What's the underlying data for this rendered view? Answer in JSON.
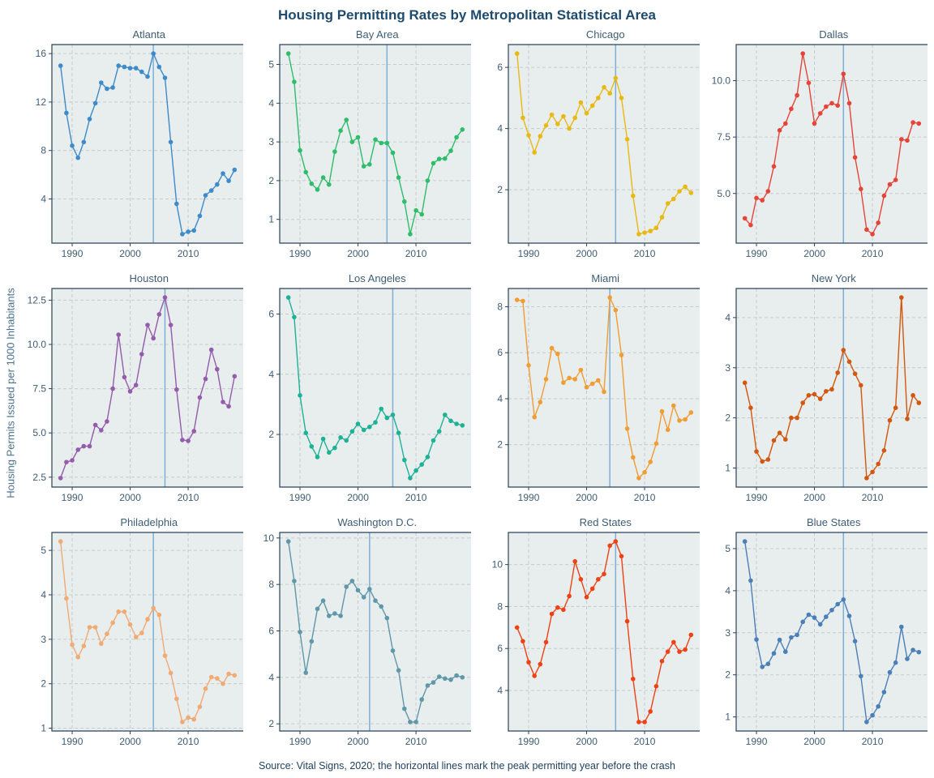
{
  "title": "Housing Permitting Rates by Metropolitan Statistical Area",
  "ylabel": "Housing Permits Issued per 1000 Inhabitants",
  "caption": "Source: Vital Signs, 2020; the horizontal lines mark the peak permitting year before the crash",
  "style": {
    "panel_bg": "#e8edee",
    "grid_color": "#c6cbce",
    "border_color": "#2a4258",
    "tick_label_color": "#3e5c74",
    "ref_line_color": "#7eb0d5",
    "title_color": "#1e4a6d"
  },
  "chart_data": {
    "type": "line",
    "x_start": 1988,
    "x_end": 2018,
    "xticks": [
      1990,
      2000,
      2010
    ],
    "x_domain": [
      1986.5,
      2019.5
    ],
    "note": "vertical reference line per panel marks peak permitting year before the crash",
    "panels": [
      {
        "name": "Atlanta",
        "slug": "atlanta",
        "color": "#3d8bc9",
        "peak_year": 2004,
        "yticks": [
          4,
          8,
          12,
          16
        ],
        "values": [
          15.0,
          11.1,
          8.4,
          7.4,
          8.7,
          10.6,
          11.9,
          13.6,
          13.1,
          13.2,
          15.0,
          14.9,
          14.8,
          14.8,
          14.5,
          14.1,
          16.0,
          14.9,
          14.0,
          8.7,
          3.6,
          1.1,
          1.3,
          1.4,
          2.6,
          4.3,
          4.7,
          5.2,
          6.1,
          5.5,
          6.4
        ]
      },
      {
        "name": "Bay Area",
        "slug": "bay-area",
        "color": "#2ebd6b",
        "peak_year": 2005,
        "yticks": [
          1,
          2,
          3,
          4,
          5
        ],
        "values": [
          5.28,
          4.55,
          2.78,
          2.22,
          1.92,
          1.77,
          2.08,
          1.9,
          2.75,
          3.29,
          3.57,
          3.0,
          3.12,
          2.37,
          2.42,
          3.06,
          2.97,
          2.97,
          2.72,
          2.08,
          1.46,
          0.62,
          1.23,
          1.13,
          2.0,
          2.45,
          2.56,
          2.57,
          2.77,
          3.12,
          3.32
        ]
      },
      {
        "name": "Chicago",
        "slug": "chicago",
        "color": "#e8b912",
        "peak_year": 2005,
        "yticks": [
          2,
          4,
          6
        ],
        "values": [
          6.45,
          4.35,
          3.78,
          3.22,
          3.75,
          4.1,
          4.45,
          4.15,
          4.4,
          4.0,
          4.35,
          4.85,
          4.5,
          4.75,
          5.0,
          5.35,
          5.15,
          5.65,
          5.0,
          3.65,
          1.8,
          0.55,
          0.6,
          0.65,
          0.75,
          1.1,
          1.55,
          1.7,
          1.95,
          2.1,
          1.9
        ]
      },
      {
        "name": "Dallas",
        "slug": "dallas",
        "color": "#e64438",
        "peak_year": 2005,
        "yticks": [
          5.0,
          7.5,
          10.0
        ],
        "values": [
          3.9,
          3.6,
          4.8,
          4.7,
          5.1,
          6.2,
          7.8,
          8.1,
          8.75,
          9.35,
          11.2,
          9.9,
          8.1,
          8.55,
          8.85,
          9.0,
          8.9,
          10.3,
          9.0,
          6.6,
          5.2,
          3.4,
          3.2,
          3.7,
          4.9,
          5.4,
          5.6,
          7.4,
          7.35,
          8.15,
          8.1
        ]
      },
      {
        "name": "Houston",
        "slug": "houston",
        "color": "#945cab",
        "peak_year": 2006,
        "yticks": [
          2.5,
          5.0,
          7.5,
          10.0,
          12.5
        ],
        "values": [
          2.45,
          3.35,
          3.45,
          4.05,
          4.25,
          4.25,
          5.45,
          5.15,
          5.65,
          7.5,
          10.55,
          8.15,
          7.35,
          7.7,
          9.45,
          11.1,
          10.35,
          11.7,
          12.65,
          11.1,
          7.45,
          4.6,
          4.55,
          5.1,
          7.0,
          8.05,
          9.7,
          8.6,
          6.75,
          6.5,
          8.2
        ]
      },
      {
        "name": "Los Angeles",
        "slug": "los-angeles",
        "color": "#1db296",
        "peak_year": 2006,
        "yticks": [
          2,
          4,
          6
        ],
        "values": [
          6.55,
          5.9,
          3.3,
          2.05,
          1.6,
          1.25,
          1.85,
          1.4,
          1.55,
          1.9,
          1.8,
          2.1,
          2.35,
          2.15,
          2.25,
          2.4,
          2.85,
          2.55,
          2.65,
          2.05,
          1.15,
          0.55,
          0.8,
          1.0,
          1.25,
          1.8,
          2.1,
          2.65,
          2.45,
          2.35,
          2.3
        ]
      },
      {
        "name": "Miami",
        "slug": "miami",
        "color": "#f09d33",
        "peak_year": 2004,
        "yticks": [
          2,
          4,
          6,
          8
        ],
        "values": [
          8.3,
          8.25,
          5.45,
          3.2,
          3.85,
          4.85,
          6.2,
          5.95,
          4.7,
          4.9,
          4.85,
          5.25,
          4.5,
          4.65,
          4.8,
          4.3,
          8.4,
          7.85,
          5.9,
          2.7,
          1.45,
          0.55,
          0.8,
          1.25,
          2.05,
          3.45,
          2.65,
          3.7,
          3.05,
          3.1,
          3.4
        ]
      },
      {
        "name": "New York",
        "slug": "new-york",
        "color": "#d2570f",
        "peak_year": 2005,
        "yticks": [
          1,
          2,
          3,
          4
        ],
        "values": [
          2.7,
          2.2,
          1.33,
          1.13,
          1.17,
          1.55,
          1.7,
          1.57,
          2.0,
          2.0,
          2.3,
          2.45,
          2.47,
          2.38,
          2.53,
          2.57,
          2.9,
          3.35,
          3.12,
          2.88,
          2.65,
          0.8,
          0.92,
          1.08,
          1.35,
          1.95,
          2.2,
          4.4,
          1.98,
          2.45,
          2.3
        ]
      },
      {
        "name": "Philadelphia",
        "slug": "philadelphia",
        "color": "#f0aa74",
        "peak_year": 2004,
        "yticks": [
          1,
          2,
          3,
          4,
          5
        ],
        "values": [
          5.2,
          3.92,
          2.88,
          2.6,
          2.85,
          3.27,
          3.27,
          2.9,
          3.12,
          3.37,
          3.62,
          3.62,
          3.33,
          3.05,
          3.14,
          3.45,
          3.7,
          3.55,
          2.63,
          2.24,
          1.66,
          1.14,
          1.24,
          1.2,
          1.48,
          1.89,
          2.15,
          2.12,
          2.0,
          2.22,
          2.19
        ]
      },
      {
        "name": "Washington D.C.",
        "slug": "washington-dc",
        "color": "#5f98a8",
        "peak_year": 2002,
        "yticks": [
          2,
          4,
          6,
          8,
          10
        ],
        "values": [
          9.85,
          8.15,
          5.95,
          4.2,
          5.55,
          6.95,
          7.3,
          6.65,
          6.75,
          6.65,
          7.9,
          8.15,
          7.75,
          7.45,
          7.8,
          7.3,
          7.05,
          6.55,
          5.15,
          4.3,
          2.65,
          2.08,
          2.08,
          3.05,
          3.65,
          3.78,
          4.03,
          3.95,
          3.9,
          4.08,
          4.0
        ]
      },
      {
        "name": "Red States",
        "slug": "red-states",
        "color": "#ee4214",
        "peak_year": 2005,
        "yticks": [
          4,
          6,
          8,
          10
        ],
        "values": [
          7.0,
          6.35,
          5.35,
          4.7,
          5.25,
          6.3,
          7.65,
          7.95,
          7.85,
          8.5,
          10.15,
          9.3,
          8.45,
          8.85,
          9.3,
          9.55,
          10.9,
          11.1,
          10.4,
          7.3,
          4.55,
          2.5,
          2.5,
          3.0,
          4.2,
          5.4,
          5.85,
          6.3,
          5.85,
          5.95,
          6.65
        ]
      },
      {
        "name": "Blue States",
        "slug": "blue-states",
        "color": "#4a7fb8",
        "peak_year": 2005,
        "yticks": [
          1,
          2,
          3,
          4,
          5
        ],
        "values": [
          5.17,
          4.24,
          2.84,
          2.19,
          2.26,
          2.51,
          2.83,
          2.55,
          2.89,
          2.95,
          3.26,
          3.43,
          3.36,
          3.2,
          3.38,
          3.54,
          3.68,
          3.79,
          3.4,
          2.8,
          1.97,
          0.88,
          1.04,
          1.25,
          1.59,
          2.06,
          2.29,
          3.14,
          2.38,
          2.59,
          2.54
        ]
      }
    ]
  }
}
